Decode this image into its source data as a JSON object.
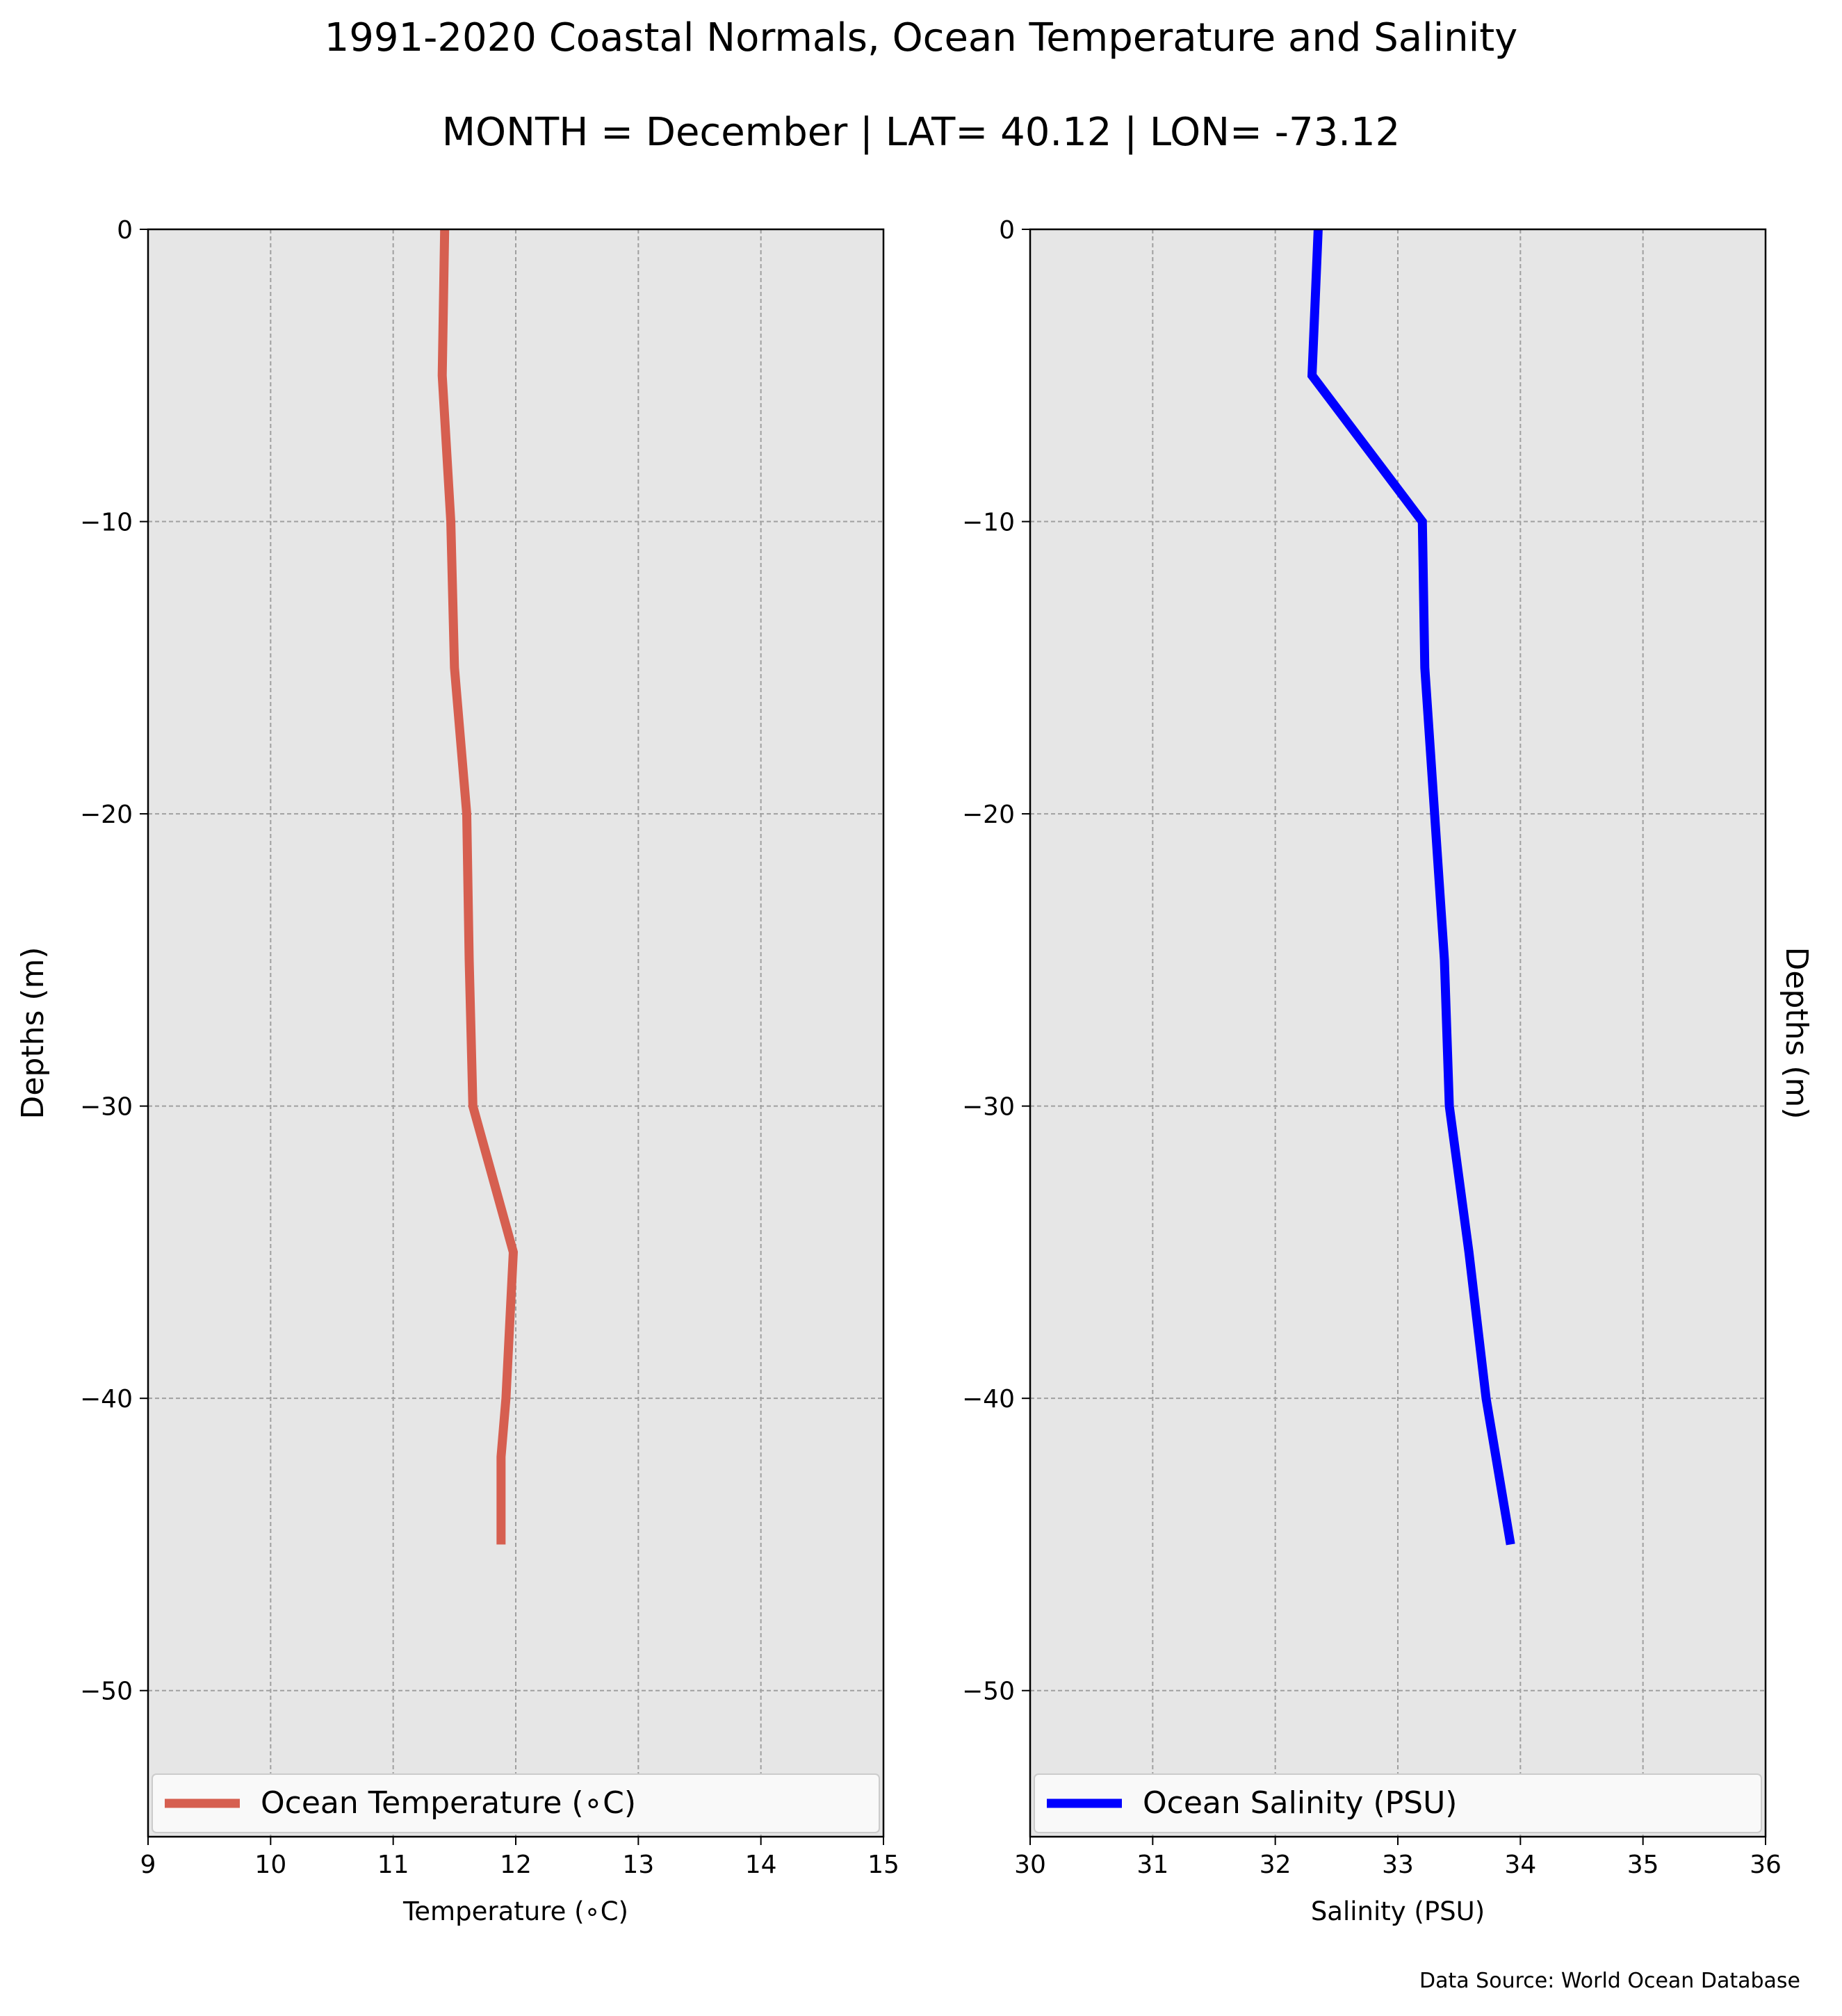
{
  "title": "1991-2020 Coastal Normals, Ocean Temperature and Salinity",
  "subtitle": "MONTH = December | LAT= 40.12 | LON= -73.12",
  "source_note": "Data Source: World Ocean Database",
  "chart_data": [
    {
      "type": "line",
      "orientation": "profile",
      "xlabel": "Temperature (∘C)",
      "ylabel": "Depths (m)",
      "xlim": [
        9,
        15
      ],
      "ylim": [
        -55,
        0
      ],
      "xticks": [
        "9",
        "10",
        "11",
        "12",
        "13",
        "14",
        "15"
      ],
      "yticks": [
        "0",
        "−10",
        "−20",
        "−30",
        "−40",
        "−50"
      ],
      "ylabel_side": "left",
      "grid": true,
      "legend_position": "lower center",
      "series": [
        {
          "name": "Ocean Temperature (∘C)",
          "color": "#d65f50",
          "x": [
            11.42,
            11.4,
            11.47,
            11.5,
            11.6,
            11.62,
            11.65,
            11.98,
            11.92,
            11.88,
            11.88
          ],
          "y": [
            0,
            -5,
            -10,
            -15,
            -20,
            -25,
            -30,
            -35,
            -40,
            -42,
            -45
          ]
        }
      ]
    },
    {
      "type": "line",
      "orientation": "profile",
      "xlabel": "Salinity (PSU)",
      "ylabel": "Depths (m)",
      "xlim": [
        30,
        36
      ],
      "ylim": [
        -55,
        0
      ],
      "xticks": [
        "30",
        "31",
        "32",
        "33",
        "34",
        "35",
        "36"
      ],
      "yticks": [
        "0",
        "−10",
        "−20",
        "−30",
        "−40",
        "−50"
      ],
      "ylabel_side": "right",
      "grid": true,
      "legend_position": "lower center",
      "series": [
        {
          "name": "Ocean Salinity (PSU)",
          "color": "#0000ff",
          "x": [
            32.35,
            32.3,
            33.2,
            33.22,
            33.3,
            33.38,
            33.42,
            33.58,
            33.72,
            33.92
          ],
          "y": [
            0,
            -5,
            -10,
            -15,
            -20,
            -25,
            -30,
            -35,
            -40,
            -45
          ]
        }
      ]
    }
  ],
  "colors": {
    "plot_background": "#e6e6e6",
    "grid": "#a0a0a0",
    "legend_background": "#f9f9f9",
    "legend_border": "#cccccc"
  }
}
